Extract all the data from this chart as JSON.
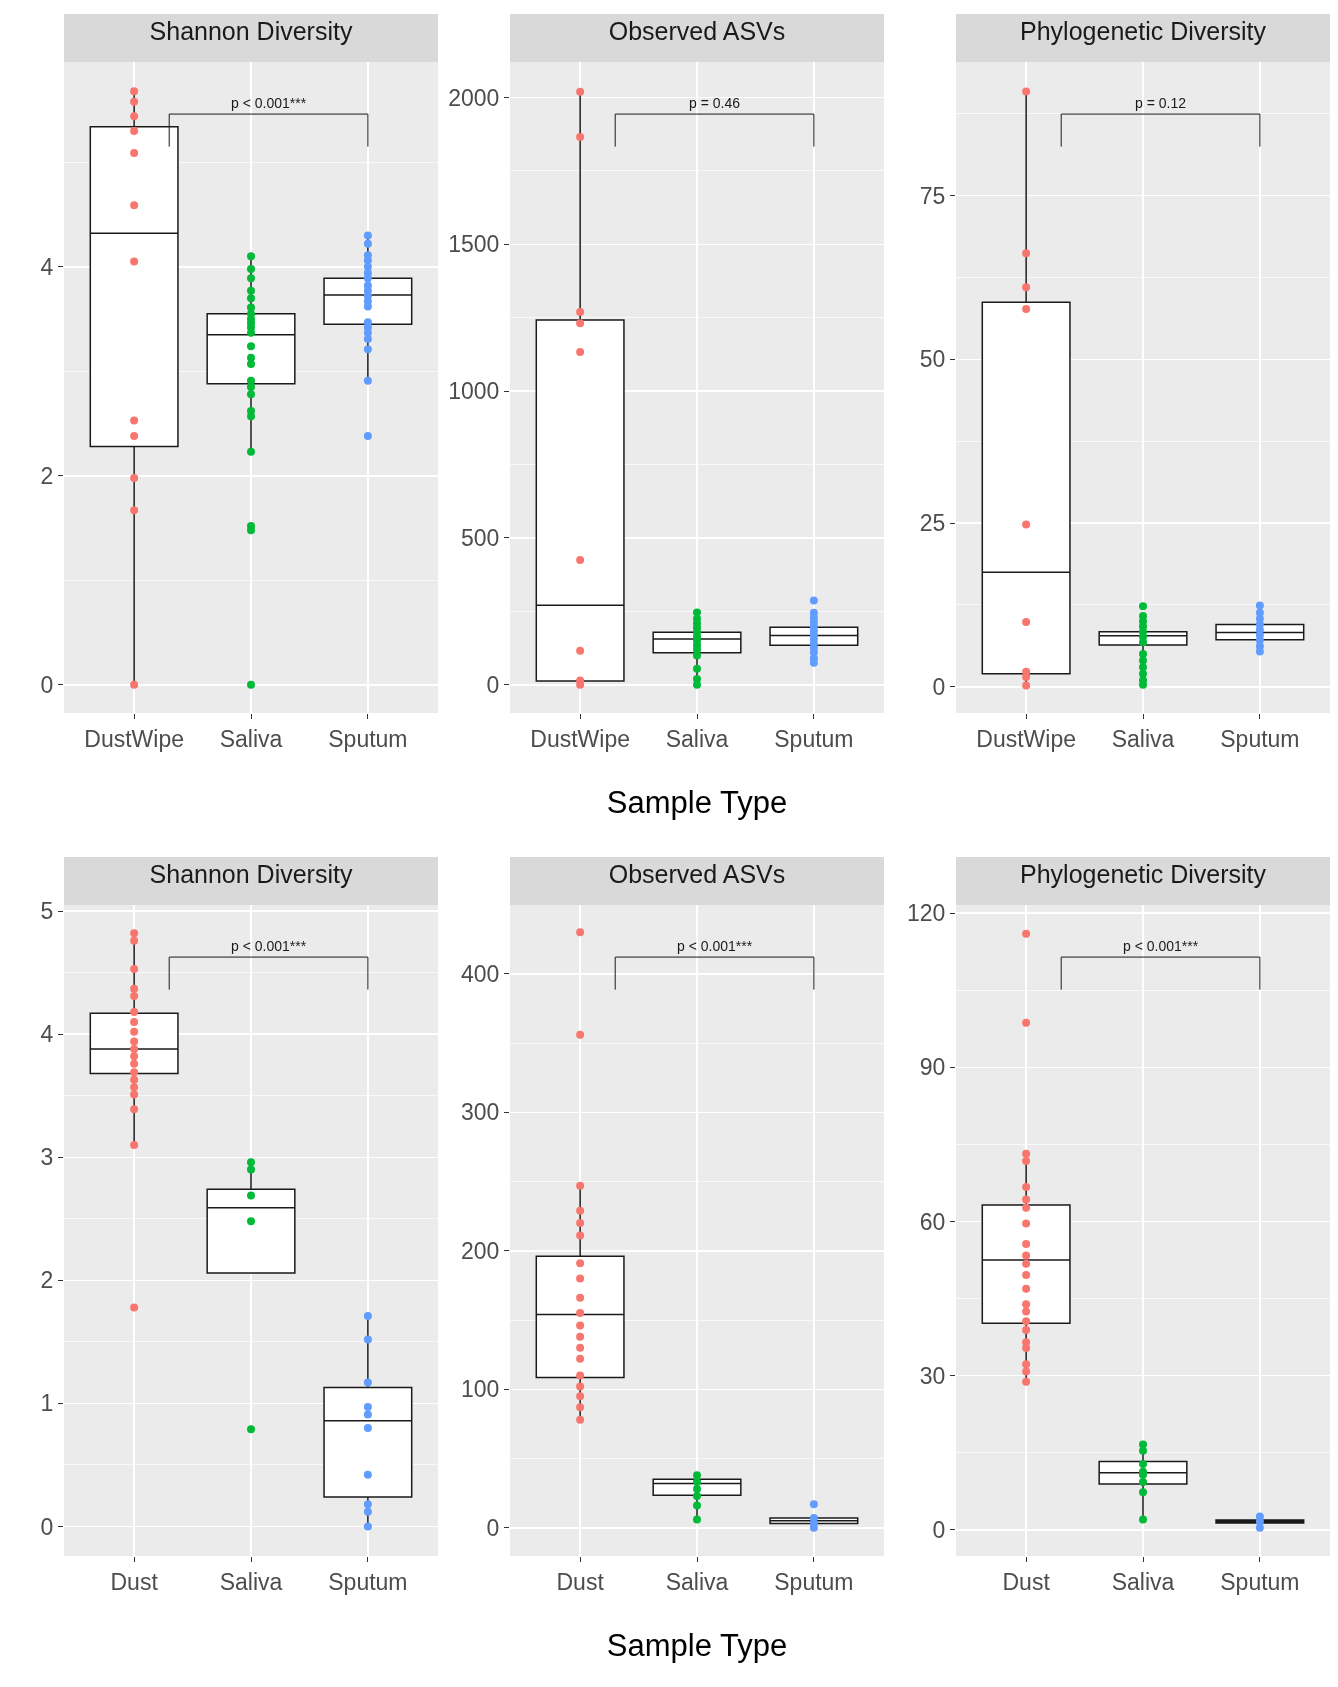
{
  "chart_data": [
    {
      "type": "box",
      "title": "Shannon Diversity",
      "categories": [
        "DustWipe",
        "Saliva",
        "Sputum"
      ],
      "ylim": [
        -0.27,
        5.96
      ],
      "yticks": [
        0,
        2,
        4
      ],
      "grid": true,
      "marker": "circle",
      "boxes": [
        {
          "low": 0,
          "q1": 2.28,
          "median": 4.32,
          "q3": 5.34,
          "high": 5.67
        },
        {
          "low": 2.23,
          "q1": 2.88,
          "median": 3.35,
          "q3": 3.55,
          "high": 4.09
        },
        {
          "low": 2.91,
          "q1": 3.45,
          "median": 3.73,
          "q3": 3.89,
          "high": 4.29
        }
      ],
      "series": [
        {
          "type": "scatter",
          "color": "#f8766d",
          "x": [
            "DustWipe",
            "DustWipe",
            "DustWipe",
            "DustWipe",
            "DustWipe",
            "DustWipe",
            "DustWipe",
            "DustWipe",
            "DustWipe",
            "DustWipe",
            "DustWipe",
            "DustWipe"
          ],
          "values": [
            5.68,
            5.58,
            5.44,
            5.3,
            5.09,
            4.59,
            4.05,
            2.53,
            2.38,
            1.98,
            1.67,
            0
          ]
        },
        {
          "type": "scatter",
          "color": "#00ba38",
          "x": [
            "Saliva",
            "Saliva",
            "Saliva",
            "Saliva",
            "Saliva",
            "Saliva",
            "Saliva",
            "Saliva",
            "Saliva",
            "Saliva",
            "Saliva",
            "Saliva",
            "Saliva",
            "Saliva",
            "Saliva",
            "Saliva",
            "Saliva",
            "Saliva",
            "Saliva",
            "Saliva",
            "Saliva",
            "Saliva",
            "Saliva"
          ],
          "values": [
            4.1,
            3.98,
            3.89,
            3.77,
            3.7,
            3.61,
            3.55,
            3.5,
            3.46,
            3.42,
            3.37,
            3.24,
            3.13,
            3.07,
            2.91,
            2.85,
            2.78,
            2.62,
            2.57,
            2.23,
            1.52,
            1.48,
            0
          ]
        },
        {
          "type": "scatter",
          "color": "#619cff",
          "x": [
            "Sputum",
            "Sputum",
            "Sputum",
            "Sputum",
            "Sputum",
            "Sputum",
            "Sputum",
            "Sputum",
            "Sputum",
            "Sputum",
            "Sputum",
            "Sputum",
            "Sputum",
            "Sputum",
            "Sputum",
            "Sputum",
            "Sputum",
            "Sputum",
            "Sputum"
          ],
          "values": [
            4.3,
            4.22,
            4.11,
            4.06,
            4.0,
            3.94,
            3.89,
            3.82,
            3.77,
            3.72,
            3.67,
            3.62,
            3.47,
            3.42,
            3.37,
            3.31,
            3.21,
            2.91,
            2.38
          ]
        }
      ],
      "annotations": [
        "p < 0.001***"
      ]
    },
    {
      "type": "box",
      "title": "Observed ASVs",
      "xlabel": "Sample Type",
      "categories": [
        "DustWipe",
        "Saliva",
        "Sputum"
      ],
      "ylim": [
        -96,
        2121
      ],
      "yticks": [
        0,
        500,
        1000,
        1500,
        2000
      ],
      "grid": true,
      "marker": "circle",
      "boxes": [
        {
          "low": 0,
          "q1": 13,
          "median": 271,
          "q3": 1242,
          "high": 2020
        },
        {
          "low": 7,
          "q1": 109,
          "median": 156,
          "q3": 179,
          "high": 246
        },
        {
          "low": 88,
          "q1": 135,
          "median": 168,
          "q3": 196,
          "high": 243
        }
      ],
      "series": [
        {
          "type": "scatter",
          "color": "#f8766d",
          "x": [
            "DustWipe",
            "DustWipe",
            "DustWipe",
            "DustWipe",
            "DustWipe",
            "DustWipe",
            "DustWipe",
            "DustWipe",
            "DustWipe"
          ],
          "values": [
            2020,
            1866,
            1270,
            1231,
            1133,
            425,
            116,
            15,
            0
          ]
        },
        {
          "type": "scatter",
          "color": "#00ba38",
          "x": [
            "Saliva",
            "Saliva",
            "Saliva",
            "Saliva",
            "Saliva",
            "Saliva",
            "Saliva",
            "Saliva",
            "Saliva",
            "Saliva",
            "Saliva",
            "Saliva",
            "Saliva"
          ],
          "values": [
            246,
            225,
            210,
            195,
            180,
            165,
            150,
            135,
            120,
            100,
            55,
            20,
            0
          ]
        },
        {
          "type": "scatter",
          "color": "#619cff",
          "x": [
            "Sputum",
            "Sputum",
            "Sputum",
            "Sputum",
            "Sputum",
            "Sputum",
            "Sputum",
            "Sputum",
            "Sputum",
            "Sputum",
            "Sputum",
            "Sputum",
            "Sputum"
          ],
          "values": [
            287,
            245,
            230,
            215,
            200,
            185,
            170,
            155,
            140,
            125,
            110,
            90,
            75
          ]
        }
      ],
      "annotations": [
        "p = 0.46"
      ]
    },
    {
      "type": "box",
      "title": "Phylogenetic Diversity",
      "categories": [
        "DustWipe",
        "Saliva",
        "Sputum"
      ],
      "ylim": [
        -4,
        95.4
      ],
      "yticks": [
        0,
        25,
        50,
        75
      ],
      "grid": true,
      "marker": "circle",
      "boxes": [
        {
          "low": 0.5,
          "q1": 2.0,
          "median": 17.5,
          "q3": 58.7,
          "high": 90.9
        },
        {
          "low": 3.3,
          "q1": 6.4,
          "median": 7.8,
          "q3": 8.4,
          "high": 10.5
        },
        {
          "low": 5.7,
          "q1": 7.2,
          "median": 8.3,
          "q3": 9.5,
          "high": 12.4
        }
      ],
      "series": [
        {
          "type": "scatter",
          "color": "#f8766d",
          "x": [
            "DustWipe",
            "DustWipe",
            "DustWipe",
            "DustWipe",
            "DustWipe",
            "DustWipe",
            "DustWipe",
            "DustWipe",
            "DustWipe"
          ],
          "values": [
            90.9,
            66.2,
            61.0,
            57.7,
            24.8,
            9.9,
            2.3,
            1.5,
            0.2
          ]
        },
        {
          "type": "scatter",
          "color": "#00ba38",
          "x": [
            "Saliva",
            "Saliva",
            "Saliva",
            "Saliva",
            "Saliva",
            "Saliva",
            "Saliva",
            "Saliva",
            "Saliva",
            "Saliva",
            "Saliva",
            "Saliva",
            "Saliva"
          ],
          "values": [
            12.3,
            10.8,
            10.0,
            9.2,
            8.4,
            7.6,
            6.8,
            5.0,
            4.0,
            3.0,
            2.0,
            1.0,
            0.3
          ]
        },
        {
          "type": "scatter",
          "color": "#619cff",
          "x": [
            "Sputum",
            "Sputum",
            "Sputum",
            "Sputum",
            "Sputum",
            "Sputum",
            "Sputum",
            "Sputum",
            "Sputum"
          ],
          "values": [
            12.4,
            11.3,
            10.4,
            9.5,
            8.7,
            7.9,
            7.1,
            6.2,
            5.4
          ]
        }
      ],
      "annotations": [
        "p = 0.12"
      ]
    },
    {
      "type": "box",
      "title": "Shannon Diversity",
      "categories": [
        "Dust",
        "Saliva",
        "Sputum"
      ],
      "ylim": [
        -0.24,
        5.05
      ],
      "yticks": [
        0,
        1,
        2,
        3,
        4,
        5
      ],
      "grid": true,
      "marker": "circle",
      "boxes": [
        {
          "low": 3.1,
          "q1": 3.68,
          "median": 3.88,
          "q3": 4.17,
          "high": 4.81
        },
        {
          "low": 2.06,
          "q1": 2.06,
          "median": 2.59,
          "q3": 2.74,
          "high": 2.95
        },
        {
          "low": 0,
          "q1": 0.24,
          "median": 0.86,
          "q3": 1.13,
          "high": 1.71
        }
      ],
      "series": [
        {
          "type": "scatter",
          "color": "#f8766d",
          "x": [
            "Dust",
            "Dust",
            "Dust",
            "Dust",
            "Dust",
            "Dust",
            "Dust",
            "Dust",
            "Dust",
            "Dust",
            "Dust",
            "Dust",
            "Dust",
            "Dust",
            "Dust",
            "Dust",
            "Dust",
            "Dust",
            "Dust"
          ],
          "values": [
            4.82,
            4.76,
            4.53,
            4.37,
            4.31,
            4.18,
            4.1,
            4.02,
            3.94,
            3.88,
            3.82,
            3.76,
            3.69,
            3.63,
            3.57,
            3.51,
            3.39,
            3.1,
            1.78
          ]
        },
        {
          "type": "scatter",
          "color": "#00ba38",
          "x": [
            "Saliva",
            "Saliva",
            "Saliva",
            "Saliva",
            "Saliva"
          ],
          "values": [
            2.96,
            2.9,
            2.69,
            2.48,
            0.79
          ]
        },
        {
          "type": "scatter",
          "color": "#619cff",
          "x": [
            "Sputum",
            "Sputum",
            "Sputum",
            "Sputum",
            "Sputum",
            "Sputum",
            "Sputum",
            "Sputum",
            "Sputum",
            "Sputum"
          ],
          "values": [
            1.71,
            1.52,
            1.17,
            0.97,
            0.91,
            0.8,
            0.42,
            0.18,
            0.12,
            0
          ]
        }
      ],
      "annotations": [
        "p < 0.001***"
      ]
    },
    {
      "type": "box",
      "title": "Observed ASVs",
      "xlabel": "Sample Type",
      "categories": [
        "Dust",
        "Saliva",
        "Sputum"
      ],
      "ylim": [
        -20.4,
        449.7
      ],
      "yticks": [
        0,
        100,
        200,
        300,
        400
      ],
      "grid": true,
      "marker": "circle",
      "boxes": [
        {
          "low": 78,
          "q1": 108.5,
          "median": 154,
          "q3": 196,
          "high": 247
        },
        {
          "low": 6,
          "q1": 23.5,
          "median": 32,
          "q3": 35,
          "high": 37
        },
        {
          "low": 0,
          "q1": 3,
          "median": 5,
          "q3": 7,
          "high": 7
        }
      ],
      "series": [
        {
          "type": "scatter",
          "color": "#f8766d",
          "x": [
            "Dust",
            "Dust",
            "Dust",
            "Dust",
            "Dust",
            "Dust",
            "Dust",
            "Dust",
            "Dust",
            "Dust",
            "Dust",
            "Dust",
            "Dust",
            "Dust",
            "Dust",
            "Dust",
            "Dust",
            "Dust",
            "Dust"
          ],
          "values": [
            430,
            356,
            247,
            229,
            220,
            211,
            191,
            180,
            166,
            155,
            146,
            138,
            130,
            122,
            110,
            102,
            95,
            87,
            78
          ]
        },
        {
          "type": "scatter",
          "color": "#00ba38",
          "x": [
            "Saliva",
            "Saliva",
            "Saliva",
            "Saliva",
            "Saliva",
            "Saliva"
          ],
          "values": [
            38,
            33,
            28,
            23,
            16,
            6
          ]
        },
        {
          "type": "scatter",
          "color": "#619cff",
          "x": [
            "Sputum",
            "Sputum",
            "Sputum",
            "Sputum"
          ],
          "values": [
            17,
            7,
            3,
            0
          ]
        }
      ],
      "annotations": [
        "p < 0.001***"
      ]
    },
    {
      "type": "box",
      "title": "Phylogenetic Diversity",
      "categories": [
        "Dust",
        "Saliva",
        "Sputum"
      ],
      "ylim": [
        -5.1,
        121.6
      ],
      "yticks": [
        0,
        30,
        60,
        90,
        120
      ],
      "grid": true,
      "marker": "circle",
      "boxes": [
        {
          "low": 28.6,
          "q1": 40.2,
          "median": 52.5,
          "q3": 63.2,
          "high": 72.7
        },
        {
          "low": 2.0,
          "q1": 8.9,
          "median": 11.1,
          "q3": 13.3,
          "high": 16.4
        },
        {
          "low": 0.4,
          "q1": 1.3,
          "median": 1.6,
          "q3": 1.9,
          "high": 2.5
        }
      ],
      "series": [
        {
          "type": "scatter",
          "color": "#f8766d",
          "x": [
            "Dust",
            "Dust",
            "Dust",
            "Dust",
            "Dust",
            "Dust",
            "Dust",
            "Dust",
            "Dust",
            "Dust",
            "Dust",
            "Dust",
            "Dust",
            "Dust",
            "Dust",
            "Dust",
            "Dust",
            "Dust",
            "Dust",
            "Dust",
            "Dust",
            "Dust"
          ],
          "values": [
            116,
            98.7,
            73.2,
            71.8,
            66.7,
            64.3,
            62.7,
            59.6,
            55.6,
            53.4,
            51.8,
            49.6,
            46.9,
            43.9,
            42.5,
            40.6,
            38.9,
            36.5,
            35.4,
            32.2,
            30.8,
            28.8
          ]
        },
        {
          "type": "scatter",
          "color": "#00ba38",
          "x": [
            "Saliva",
            "Saliva",
            "Saliva",
            "Saliva",
            "Saliva",
            "Saliva",
            "Saliva",
            "Saliva"
          ],
          "values": [
            16.6,
            15.4,
            12.8,
            11.3,
            10.7,
            9.3,
            7.3,
            2.0
          ]
        },
        {
          "type": "scatter",
          "color": "#619cff",
          "x": [
            "Sputum",
            "Sputum",
            "Sputum"
          ],
          "values": [
            2.6,
            1.6,
            0.4
          ]
        }
      ],
      "annotations": [
        "p < 0.001***"
      ]
    }
  ]
}
